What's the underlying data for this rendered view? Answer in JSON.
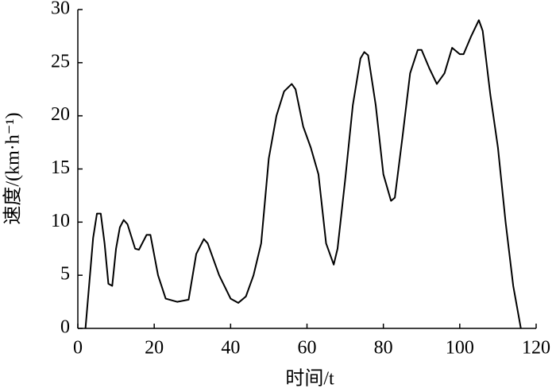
{
  "chart_data": {
    "type": "line",
    "x_label": "时间/t",
    "y_label": "速度/(km·h⁻¹)",
    "x": [
      2,
      4,
      5,
      6,
      7,
      8,
      9,
      10,
      11,
      12,
      13,
      15,
      16,
      18,
      19,
      21,
      23,
      26,
      29,
      31,
      33,
      34,
      37,
      40,
      42,
      44,
      46,
      48,
      50,
      52,
      54,
      56,
      57,
      59,
      61,
      63,
      65,
      67,
      68,
      70,
      72,
      74,
      75,
      76,
      78,
      80,
      82,
      83,
      85,
      87,
      89,
      90,
      92,
      94,
      96,
      98,
      100,
      101,
      103,
      105,
      106,
      108,
      110,
      112,
      114,
      116
    ],
    "series": [
      {
        "name": null,
        "color": "#000000",
        "values": [
          0,
          8.5,
          10.8,
          10.8,
          8,
          4.2,
          4,
          7.5,
          9.5,
          10.2,
          9.8,
          7.5,
          7.4,
          8.8,
          8.8,
          5,
          2.8,
          2.5,
          2.7,
          7,
          8.4,
          8,
          5,
          2.8,
          2.4,
          3,
          5,
          8,
          16,
          20,
          22.3,
          23,
          22.5,
          19,
          17,
          14.5,
          8,
          6,
          7.5,
          14,
          21,
          25.4,
          26,
          25.7,
          21,
          14.5,
          12,
          12.3,
          18,
          24,
          26.2,
          26.2,
          24.5,
          23,
          24,
          26.4,
          25.8,
          25.8,
          27.5,
          29,
          28,
          22,
          17,
          10,
          4,
          0
        ]
      }
    ],
    "xlim": [
      0,
      120
    ],
    "xticks": [
      0,
      20,
      40,
      60,
      80,
      100,
      120
    ],
    "ylim": [
      0,
      30
    ],
    "yticks": [
      0,
      5,
      10,
      15,
      20,
      25,
      30
    ],
    "grid": false
  }
}
